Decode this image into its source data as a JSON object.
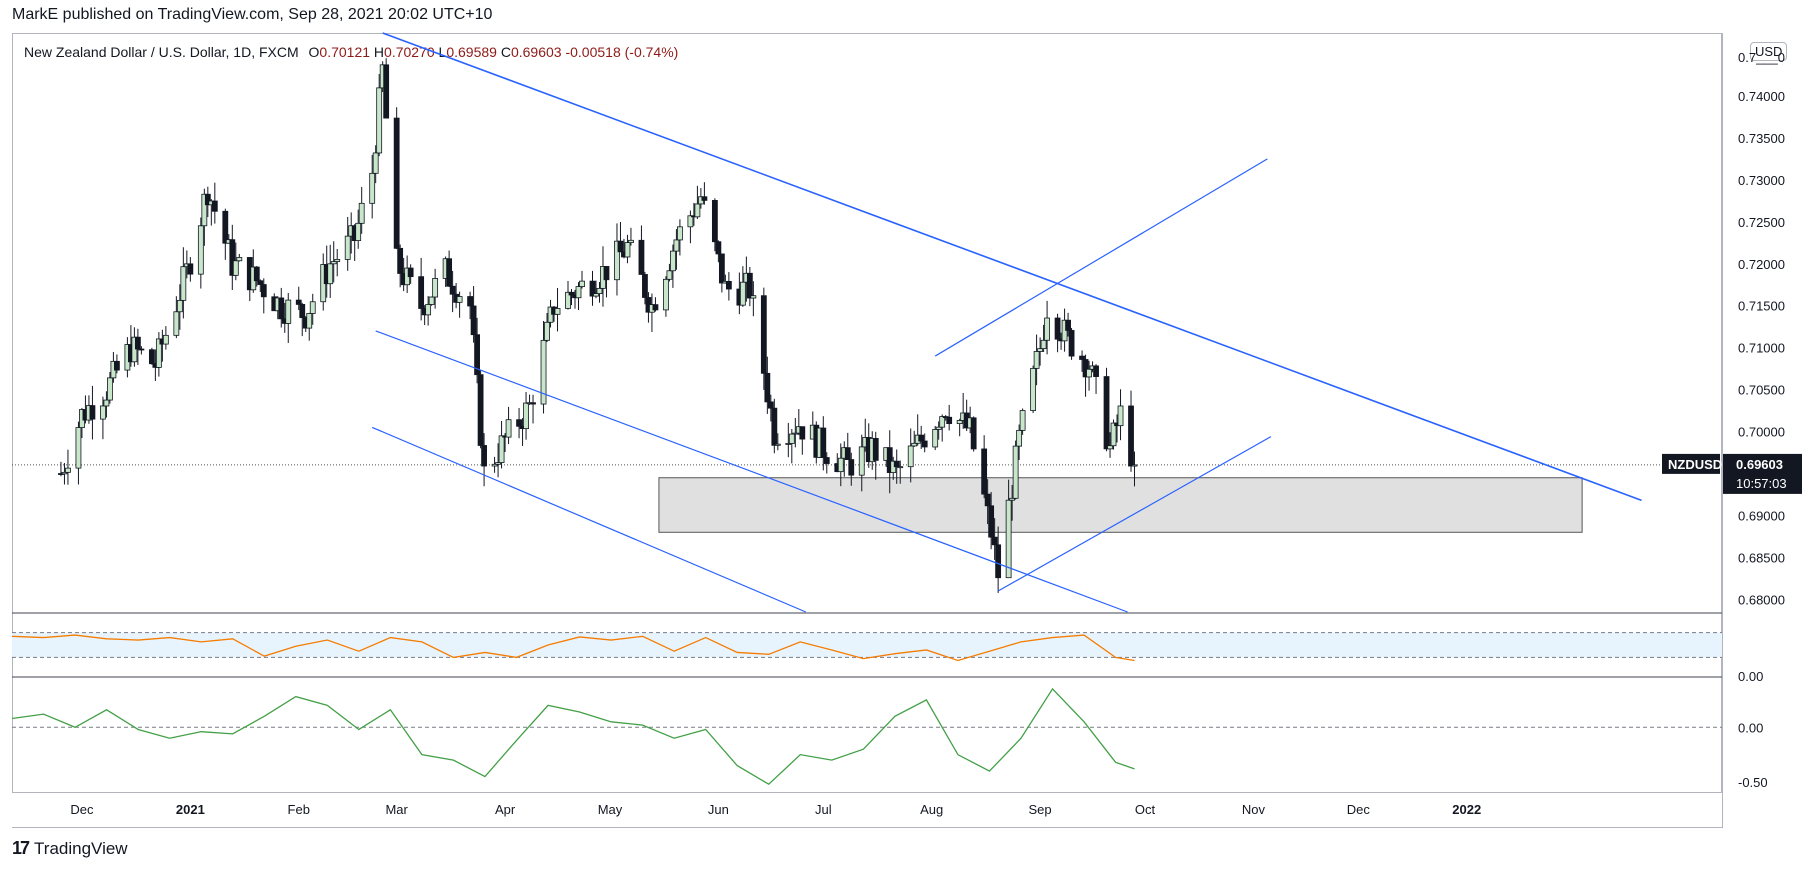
{
  "header": {
    "published_text": "MarkE published on TradingView.com, Sep 28, 2021 20:02 UTC+10",
    "symbol_desc": "New Zealand Dollar / U.S. Dollar, 1D, FXCM",
    "ohlc": {
      "o_label": "O",
      "o": "0.70121",
      "h_label": "H",
      "h": "0.70270",
      "l_label": "L",
      "l": "0.69589",
      "c_label": "C",
      "c": "0.69603",
      "change": "-0.00518 (-0.74%)"
    }
  },
  "price_axis": {
    "currency": "USD",
    "ticks": [
      "0.74000",
      "0.73500",
      "0.73000",
      "0.72500",
      "0.72000",
      "0.71500",
      "0.71000",
      "0.70500",
      "0.70000",
      "0.69000",
      "0.68500",
      "0.68000"
    ],
    "top_partial": "0.7___0"
  },
  "badges": {
    "symbol": "NZDUSD",
    "last_price": "0.69603",
    "countdown": "10:57:03"
  },
  "rsi_axis": {
    "zero_label": "0.00"
  },
  "osc_axis": {
    "ticks": [
      "0.00",
      "-0.50"
    ]
  },
  "time_axis": {
    "labels": [
      "Dec",
      "2021",
      "Feb",
      "Mar",
      "Apr",
      "May",
      "Jun",
      "Jul",
      "Aug",
      "Sep",
      "Oct",
      "Nov",
      "Dec",
      "2022"
    ],
    "bold": [
      "2021",
      "2022"
    ]
  },
  "footer": {
    "brand": "TradingView"
  },
  "colors": {
    "bull": "#c8e6c9",
    "bear": "#131722",
    "wick": "#131722",
    "trendline": "#2962ff",
    "rsi_line": "#f57c00",
    "osc_line": "#43a047",
    "zone_fill": "#e0e0e0",
    "rsi_band": "#e8f4fd"
  },
  "chart_data": {
    "type": "candlestick",
    "symbol": "NZDUSD",
    "timeframe": "1D",
    "ylim": [
      0.6785,
      0.7475
    ],
    "last_close": 0.69603,
    "support_zone": [
      0.688,
      0.6945
    ],
    "close_path": [
      [
        "2020-11-25",
        0.695
      ],
      [
        "2020-12-01",
        0.702
      ],
      [
        "2020-12-08",
        0.705
      ],
      [
        "2020-12-15",
        0.71
      ],
      [
        "2020-12-22",
        0.708
      ],
      [
        "2020-12-31",
        0.719
      ],
      [
        "2021-01-06",
        0.729
      ],
      [
        "2021-01-13",
        0.72
      ],
      [
        "2021-01-20",
        0.718
      ],
      [
        "2021-01-27",
        0.715
      ],
      [
        "2021-02-03",
        0.714
      ],
      [
        "2021-02-10",
        0.72
      ],
      [
        "2021-02-17",
        0.723
      ],
      [
        "2021-02-22",
        0.731
      ],
      [
        "2021-02-25",
        0.743
      ],
      [
        "2021-03-01",
        0.72
      ],
      [
        "2021-03-08",
        0.715
      ],
      [
        "2021-03-15",
        0.719
      ],
      [
        "2021-03-22",
        0.715
      ],
      [
        "2021-03-26",
        0.695
      ],
      [
        "2021-04-01",
        0.699
      ],
      [
        "2021-04-08",
        0.703
      ],
      [
        "2021-04-15",
        0.715
      ],
      [
        "2021-04-22",
        0.717
      ],
      [
        "2021-04-29",
        0.719
      ],
      [
        "2021-05-06",
        0.722
      ],
      [
        "2021-05-13",
        0.715
      ],
      [
        "2021-05-20",
        0.723
      ],
      [
        "2021-05-27",
        0.728
      ],
      [
        "2021-06-03",
        0.717
      ],
      [
        "2021-06-10",
        0.717
      ],
      [
        "2021-06-17",
        0.7
      ],
      [
        "2021-06-24",
        0.701
      ],
      [
        "2021-07-01",
        0.698
      ],
      [
        "2021-07-08",
        0.696
      ],
      [
        "2021-07-15",
        0.698
      ],
      [
        "2021-07-22",
        0.695
      ],
      [
        "2021-07-29",
        0.699
      ],
      [
        "2021-08-05",
        0.703
      ],
      [
        "2021-08-12",
        0.7
      ],
      [
        "2021-08-18",
        0.688
      ],
      [
        "2021-08-20",
        0.683
      ],
      [
        "2021-08-26",
        0.699
      ],
      [
        "2021-09-01",
        0.71
      ],
      [
        "2021-09-03",
        0.715
      ],
      [
        "2021-09-09",
        0.711
      ],
      [
        "2021-09-15",
        0.708
      ],
      [
        "2021-09-21",
        0.698
      ],
      [
        "2021-09-24",
        0.702
      ],
      [
        "2021-09-28",
        0.696
      ]
    ],
    "trendlines": [
      {
        "from": [
          "2021-02-25",
          0.7475
        ],
        "to": [
          "2022-02-20",
          0.6918
        ]
      },
      {
        "from": [
          "2021-02-23",
          0.712
        ],
        "to": [
          "2021-09-26",
          0.6785
        ]
      },
      {
        "from": [
          "2021-02-22",
          0.7005
        ],
        "to": [
          "2021-06-26",
          0.6785
        ]
      },
      {
        "from": [
          "2021-08-20",
          0.681
        ],
        "to": [
          "2021-11-06",
          0.6994
        ]
      },
      {
        "from": [
          "2021-08-02",
          0.709
        ],
        "to": [
          "2021-11-05",
          0.7325
        ]
      }
    ],
    "rsi": {
      "levels": [
        70,
        30
      ],
      "path": [
        [
          0,
          64
        ],
        [
          5,
          62
        ],
        [
          10,
          66
        ],
        [
          15,
          60
        ],
        [
          20,
          58
        ],
        [
          25,
          62
        ],
        [
          30,
          55
        ],
        [
          35,
          60
        ],
        [
          40,
          32
        ],
        [
          45,
          48
        ],
        [
          50,
          58
        ],
        [
          55,
          40
        ],
        [
          60,
          62
        ],
        [
          65,
          55
        ],
        [
          70,
          30
        ],
        [
          75,
          38
        ],
        [
          80,
          30
        ],
        [
          85,
          50
        ],
        [
          90,
          63
        ],
        [
          95,
          58
        ],
        [
          100,
          64
        ],
        [
          105,
          40
        ],
        [
          110,
          62
        ],
        [
          115,
          38
        ],
        [
          120,
          35
        ],
        [
          125,
          55
        ],
        [
          130,
          42
        ],
        [
          135,
          28
        ],
        [
          140,
          36
        ],
        [
          145,
          42
        ],
        [
          150,
          25
        ],
        [
          155,
          40
        ],
        [
          160,
          55
        ],
        [
          165,
          62
        ],
        [
          170,
          66
        ],
        [
          175,
          30
        ],
        [
          178,
          25
        ]
      ]
    },
    "oscillator": {
      "zero": 0.0,
      "path": [
        [
          0,
          0.08
        ],
        [
          5,
          0.12
        ],
        [
          10,
          0.0
        ],
        [
          15,
          0.16
        ],
        [
          20,
          -0.02
        ],
        [
          25,
          -0.1
        ],
        [
          30,
          -0.04
        ],
        [
          35,
          -0.06
        ],
        [
          40,
          0.1
        ],
        [
          45,
          0.28
        ],
        [
          50,
          0.2
        ],
        [
          55,
          -0.02
        ],
        [
          60,
          0.16
        ],
        [
          65,
          -0.25
        ],
        [
          70,
          -0.3
        ],
        [
          75,
          -0.45
        ],
        [
          80,
          -0.12
        ],
        [
          85,
          0.2
        ],
        [
          90,
          0.14
        ],
        [
          95,
          0.05
        ],
        [
          100,
          0.02
        ],
        [
          105,
          -0.1
        ],
        [
          110,
          -0.02
        ],
        [
          115,
          -0.35
        ],
        [
          120,
          -0.52
        ],
        [
          125,
          -0.25
        ],
        [
          130,
          -0.3
        ],
        [
          135,
          -0.2
        ],
        [
          140,
          0.1
        ],
        [
          145,
          0.25
        ],
        [
          150,
          -0.25
        ],
        [
          155,
          -0.4
        ],
        [
          160,
          -0.1
        ],
        [
          165,
          0.35
        ],
        [
          170,
          0.05
        ],
        [
          175,
          -0.32
        ],
        [
          178,
          -0.38
        ]
      ]
    }
  }
}
